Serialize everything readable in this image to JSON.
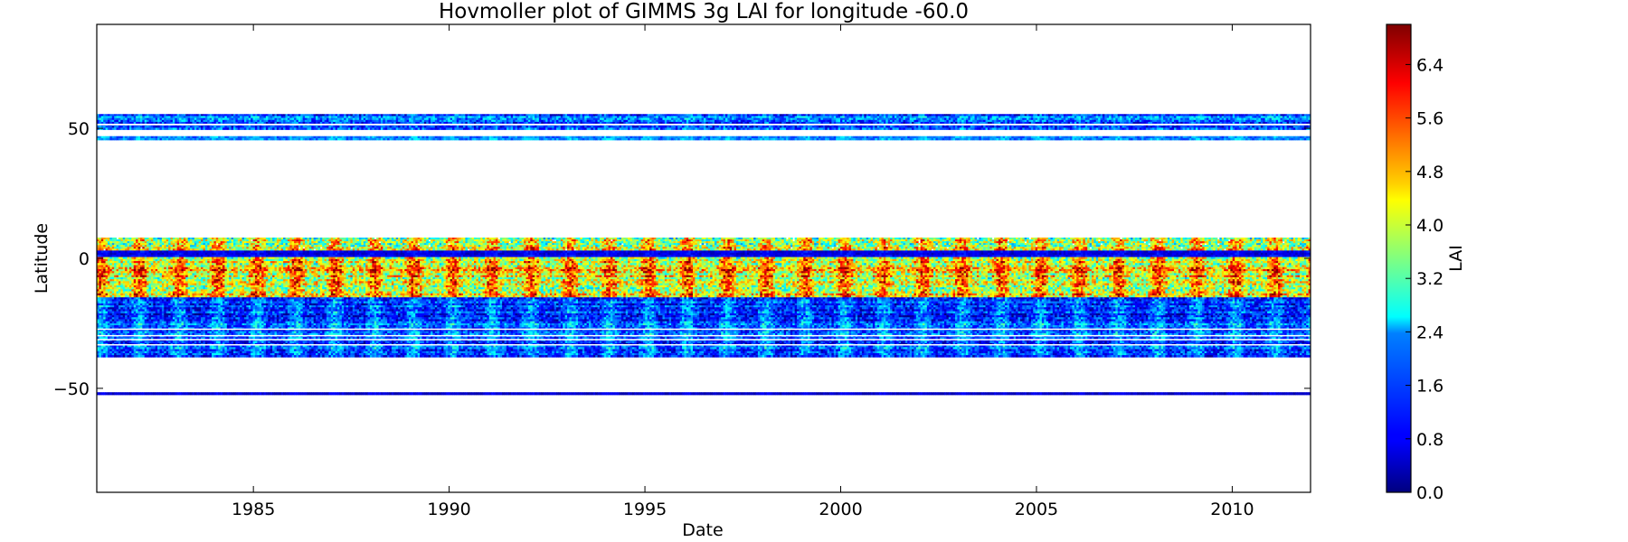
{
  "chart_data": {
    "type": "heatmap",
    "title": "Hovmoller plot of GIMMS 3g LAI for longitude -60.0",
    "xlabel": "Date",
    "ylabel": "Latitude",
    "xlim": [
      1981.0,
      2012.0
    ],
    "ylim": [
      -90,
      90
    ],
    "x_ticks": [
      1985,
      1990,
      1995,
      2000,
      2005,
      2010
    ],
    "x_tick_labels": [
      "1985",
      "1990",
      "1995",
      "2000",
      "2005",
      "2010"
    ],
    "y_ticks": [
      50,
      0,
      -50
    ],
    "y_tick_labels": [
      "50",
      "0",
      "−50"
    ],
    "colorbar": {
      "label": "LAI",
      "vmin": 0.0,
      "vmax": 7.0,
      "colormap": "jet",
      "ticks": [
        0.0,
        0.8,
        1.6,
        2.4,
        3.2,
        4.0,
        4.8,
        5.6,
        6.4
      ],
      "tick_labels": [
        "0.0",
        "0.8",
        "1.6",
        "2.4",
        "3.2",
        "4.0",
        "4.8",
        "5.6",
        "6.4"
      ]
    },
    "data_bands": [
      {
        "lat_min": 49.5,
        "lat_max": 55.5,
        "typical_lai": [
          0.5,
          3.0
        ],
        "seasonal_peak_lai": 1.2
      },
      {
        "lat_min": 45.5,
        "lat_max": 47.0,
        "typical_lai": [
          1.0,
          2.5
        ],
        "seasonal_peak_lai": 2.0
      },
      {
        "lat_min": 3.0,
        "lat_max": 8.0,
        "typical_lai": [
          2.5,
          6.5
        ],
        "seasonal_peak_lai": 6.0
      },
      {
        "lat_min": 0.5,
        "lat_max": 3.0,
        "typical_lai": [
          0.3,
          1.2
        ],
        "seasonal_peak_lai": 1.0
      },
      {
        "lat_min": -15.0,
        "lat_max": 0.5,
        "typical_lai": [
          3.0,
          6.9
        ],
        "seasonal_peak_lai": 6.8
      },
      {
        "lat_min": -38.0,
        "lat_max": -15.0,
        "typical_lai": [
          0.5,
          3.0
        ],
        "seasonal_peak_lai": 2.5
      },
      {
        "lat_min": -52.5,
        "lat_max": -51.5,
        "typical_lai": [
          0.2,
          0.8
        ],
        "seasonal_peak_lai": 0.8
      }
    ],
    "seasonal_cycle": "annual",
    "grid": false
  }
}
